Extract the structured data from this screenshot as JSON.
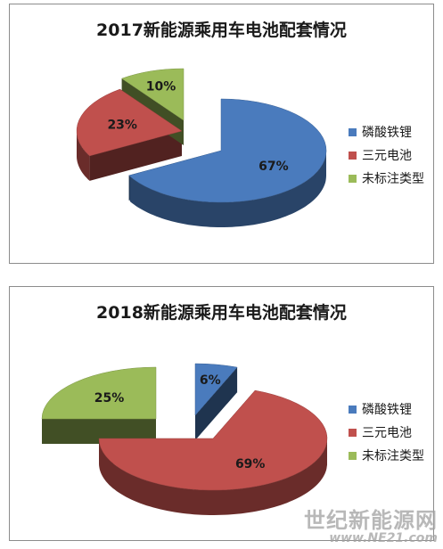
{
  "chart_data": [
    {
      "type": "pie",
      "title": "2017新能源乘用车电池配套情况",
      "categories": [
        "磷酸铁锂",
        "三元电池",
        "未标注类型"
      ],
      "values": [
        67,
        23,
        10
      ],
      "value_labels": [
        "67%",
        "23%",
        "10%"
      ],
      "colors": [
        "#4a7bbd",
        "#c0504d",
        "#9bbb59"
      ],
      "legend_position": "right"
    },
    {
      "type": "pie",
      "title": "2018新能源乘用车电池配套情况",
      "categories": [
        "磷酸铁锂",
        "三元电池",
        "未标注类型"
      ],
      "values": [
        6,
        69,
        25
      ],
      "value_labels": [
        "6%",
        "69%",
        "25%"
      ],
      "colors": [
        "#4a7bbd",
        "#c0504d",
        "#9bbb59"
      ],
      "legend_position": "right"
    }
  ],
  "watermark": {
    "main": "世纪新能源网",
    "url": "www.NE21.com"
  }
}
